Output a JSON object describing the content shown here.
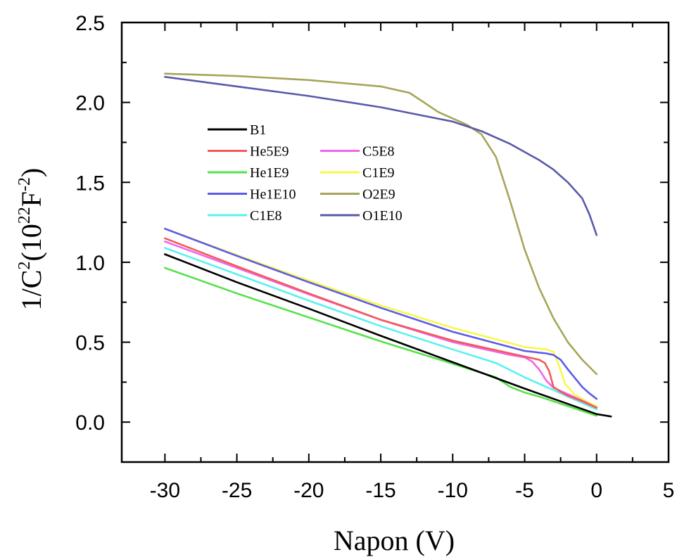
{
  "chart_data": {
    "type": "line",
    "title": "",
    "xlabel": "Napon (V)",
    "ylabel": {
      "base": "1/C",
      "exp1": "2",
      "mid": "(10",
      "exp2": "22",
      "unit": "F",
      "exp3": "-2",
      "close": ")"
    },
    "xlim": [
      -33,
      5
    ],
    "ylim": [
      -0.25,
      2.5
    ],
    "xticks": [
      -30,
      -25,
      -20,
      -15,
      -10,
      -5,
      0,
      5
    ],
    "yticks": [
      0.0,
      0.5,
      1.0,
      1.5,
      2.0,
      2.5
    ],
    "xtick_labels": [
      "-30",
      "-25",
      "-20",
      "-15",
      "-10",
      "-5",
      "0",
      "5"
    ],
    "ytick_labels": [
      "0.0",
      "0.5",
      "1.0",
      "1.5",
      "2.0",
      "2.5"
    ],
    "grid": false,
    "legend_position": "upper-left, two columns",
    "series": [
      {
        "name": "B1",
        "color": "#000000",
        "x": [
          -30,
          -25,
          -20,
          -15,
          -10,
          -5,
          0,
          1
        ],
        "y": [
          1.05,
          0.875,
          0.71,
          0.54,
          0.375,
          0.21,
          0.05,
          0.035
        ]
      },
      {
        "name": "He5E9",
        "color": "#f25a5a",
        "x": [
          -30,
          -25,
          -20,
          -15,
          -10,
          -6,
          -5,
          -4,
          -3.6,
          -3.3,
          -3,
          -2.5,
          -2,
          -1,
          0
        ],
        "y": [
          1.15,
          0.975,
          0.805,
          0.64,
          0.51,
          0.43,
          0.41,
          0.39,
          0.37,
          0.32,
          0.22,
          0.19,
          0.165,
          0.13,
          0.09
        ]
      },
      {
        "name": "He1E9",
        "color": "#55e24a",
        "x": [
          -30,
          -25,
          -20,
          -15,
          -10,
          -7,
          -6,
          -5,
          -4,
          -2,
          0
        ],
        "y": [
          0.965,
          0.805,
          0.655,
          0.505,
          0.365,
          0.28,
          0.22,
          0.185,
          0.16,
          0.1,
          0.04
        ]
      },
      {
        "name": "He1E10",
        "color": "#5b5bea",
        "x": [
          -30,
          -25,
          -20,
          -15,
          -10,
          -5,
          -3.5,
          -3,
          -2.5,
          -2,
          -1,
          -0.5,
          0
        ],
        "y": [
          1.21,
          1.04,
          0.875,
          0.715,
          0.565,
          0.445,
          0.43,
          0.42,
          0.39,
          0.33,
          0.22,
          0.18,
          0.145
        ]
      },
      {
        "name": "C1E8",
        "color": "#5cf0f0",
        "x": [
          -30,
          -25,
          -20,
          -15,
          -10,
          -7,
          -5,
          -3,
          -1,
          0
        ],
        "y": [
          1.09,
          0.925,
          0.76,
          0.6,
          0.455,
          0.37,
          0.28,
          0.2,
          0.12,
          0.08
        ]
      },
      {
        "name": "C5E8",
        "color": "#ee66ee",
        "x": [
          -30,
          -25,
          -20,
          -15,
          -10,
          -6,
          -5,
          -4.5,
          -4,
          -3.5,
          -3,
          -2,
          -1,
          0
        ],
        "y": [
          1.13,
          0.965,
          0.8,
          0.64,
          0.5,
          0.42,
          0.405,
          0.38,
          0.33,
          0.26,
          0.215,
          0.175,
          0.135,
          0.09
        ]
      },
      {
        "name": "C1E9",
        "color": "#f8f84a",
        "x": [
          -30,
          -25,
          -20,
          -15,
          -10,
          -5,
          -3.5,
          -3,
          -2.6,
          -2.2,
          -1.5,
          -0.5,
          0
        ],
        "y": [
          1.21,
          1.045,
          0.885,
          0.73,
          0.59,
          0.47,
          0.455,
          0.44,
          0.35,
          0.24,
          0.17,
          0.12,
          0.1
        ]
      },
      {
        "name": "O2E9",
        "color": "#a5a55a",
        "x": [
          -30,
          -25,
          -20,
          -15,
          -13,
          -12,
          -11,
          -10,
          -9,
          -8,
          -7,
          -6,
          -5,
          -4,
          -3,
          -2,
          -1,
          0
        ],
        "y": [
          2.18,
          2.165,
          2.14,
          2.1,
          2.06,
          2.0,
          1.94,
          1.9,
          1.86,
          1.8,
          1.66,
          1.38,
          1.08,
          0.84,
          0.65,
          0.5,
          0.39,
          0.3
        ]
      },
      {
        "name": "O1E10",
        "color": "#5a5aa8",
        "x": [
          -30,
          -25,
          -20,
          -15,
          -10,
          -8,
          -6,
          -4,
          -3,
          -2,
          -1,
          -0.5,
          0
        ],
        "y": [
          2.16,
          2.1,
          2.04,
          1.97,
          1.88,
          1.82,
          1.74,
          1.64,
          1.58,
          1.5,
          1.4,
          1.3,
          1.17
        ]
      }
    ],
    "legend_layout": [
      [
        "B1"
      ],
      [
        "He5E9",
        "C5E8"
      ],
      [
        "He1E9",
        "C1E9"
      ],
      [
        "He1E10",
        "O2E9"
      ],
      [
        "C1E8",
        "O1E10"
      ]
    ]
  }
}
